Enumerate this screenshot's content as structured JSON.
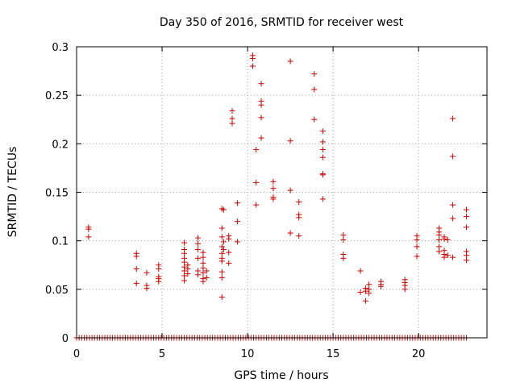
{
  "chart_data": {
    "type": "scatter",
    "title": "Day 350 of 2016, SRMTID for receiver west",
    "xlabel": "GPS time / hours",
    "ylabel": "SRMTID / TECUs",
    "xlim": [
      0,
      24
    ],
    "ylim": [
      0,
      0.3
    ],
    "x_ticks": [
      0,
      5,
      10,
      15,
      20
    ],
    "x_tick_labels": [
      "0",
      "5",
      "10",
      "15",
      "20"
    ],
    "y_ticks": [
      0,
      0.05,
      0.1,
      0.15,
      0.2,
      0.25,
      0.3
    ],
    "y_tick_labels": [
      "0",
      "0.05",
      "0.1",
      "0.15",
      "0.2",
      "0.25",
      "0.3"
    ],
    "grid": true,
    "marker": "+",
    "color": "#d00000",
    "zero_baseline": {
      "x_start": 0.0,
      "x_end": 22.8,
      "step": 0.15,
      "y": 0
    },
    "points": [
      [
        0.7,
        0.114
      ],
      [
        0.7,
        0.112
      ],
      [
        0.7,
        0.104
      ],
      [
        3.5,
        0.087
      ],
      [
        3.5,
        0.084
      ],
      [
        3.5,
        0.071
      ],
      [
        3.5,
        0.056
      ],
      [
        4.1,
        0.067
      ],
      [
        4.1,
        0.054
      ],
      [
        4.1,
        0.051
      ],
      [
        4.8,
        0.075
      ],
      [
        4.8,
        0.071
      ],
      [
        4.8,
        0.063
      ],
      [
        4.8,
        0.061
      ],
      [
        4.8,
        0.058
      ],
      [
        6.3,
        0.098
      ],
      [
        6.3,
        0.091
      ],
      [
        6.3,
        0.087
      ],
      [
        6.3,
        0.082
      ],
      [
        6.3,
        0.078
      ],
      [
        6.3,
        0.073
      ],
      [
        6.3,
        0.069
      ],
      [
        6.3,
        0.064
      ],
      [
        6.3,
        0.059
      ],
      [
        6.5,
        0.075
      ],
      [
        6.5,
        0.071
      ],
      [
        6.5,
        0.066
      ],
      [
        7.1,
        0.103
      ],
      [
        7.1,
        0.097
      ],
      [
        7.1,
        0.091
      ],
      [
        7.1,
        0.082
      ],
      [
        7.1,
        0.069
      ],
      [
        7.1,
        0.065
      ],
      [
        7.4,
        0.088
      ],
      [
        7.4,
        0.083
      ],
      [
        7.4,
        0.077
      ],
      [
        7.4,
        0.072
      ],
      [
        7.4,
        0.067
      ],
      [
        7.4,
        0.061
      ],
      [
        7.4,
        0.058
      ],
      [
        7.6,
        0.069
      ],
      [
        7.6,
        0.062
      ],
      [
        8.5,
        0.133
      ],
      [
        8.5,
        0.113
      ],
      [
        8.5,
        0.104
      ],
      [
        8.5,
        0.094
      ],
      [
        8.5,
        0.087
      ],
      [
        8.5,
        0.082
      ],
      [
        8.5,
        0.079
      ],
      [
        8.5,
        0.068
      ],
      [
        8.5,
        0.062
      ],
      [
        8.5,
        0.042
      ],
      [
        8.6,
        0.132
      ],
      [
        8.6,
        0.099
      ],
      [
        8.6,
        0.091
      ],
      [
        8.9,
        0.105
      ],
      [
        8.9,
        0.102
      ],
      [
        8.9,
        0.088
      ],
      [
        8.9,
        0.077
      ],
      [
        9.1,
        0.234
      ],
      [
        9.1,
        0.226
      ],
      [
        9.1,
        0.221
      ],
      [
        9.4,
        0.139
      ],
      [
        9.4,
        0.12
      ],
      [
        9.4,
        0.099
      ],
      [
        10.3,
        0.291
      ],
      [
        10.3,
        0.288
      ],
      [
        10.3,
        0.28
      ],
      [
        10.5,
        0.194
      ],
      [
        10.5,
        0.16
      ],
      [
        10.5,
        0.137
      ],
      [
        10.8,
        0.262
      ],
      [
        10.8,
        0.244
      ],
      [
        10.8,
        0.24
      ],
      [
        10.8,
        0.227
      ],
      [
        10.8,
        0.206
      ],
      [
        11.5,
        0.161
      ],
      [
        11.5,
        0.154
      ],
      [
        11.5,
        0.145
      ],
      [
        11.5,
        0.143
      ],
      [
        12.5,
        0.285
      ],
      [
        12.5,
        0.203
      ],
      [
        12.5,
        0.152
      ],
      [
        12.5,
        0.108
      ],
      [
        13.0,
        0.14
      ],
      [
        13.0,
        0.127
      ],
      [
        13.0,
        0.124
      ],
      [
        13.0,
        0.105
      ],
      [
        13.9,
        0.272
      ],
      [
        13.9,
        0.256
      ],
      [
        13.9,
        0.225
      ],
      [
        14.4,
        0.213
      ],
      [
        14.4,
        0.202
      ],
      [
        14.4,
        0.194
      ],
      [
        14.4,
        0.186
      ],
      [
        14.4,
        0.169
      ],
      [
        14.4,
        0.168
      ],
      [
        14.4,
        0.143
      ],
      [
        15.6,
        0.106
      ],
      [
        15.6,
        0.101
      ],
      [
        15.6,
        0.086
      ],
      [
        15.6,
        0.082
      ],
      [
        16.6,
        0.069
      ],
      [
        16.6,
        0.047
      ],
      [
        16.9,
        0.051
      ],
      [
        16.9,
        0.048
      ],
      [
        16.9,
        0.038
      ],
      [
        17.1,
        0.055
      ],
      [
        17.1,
        0.05
      ],
      [
        17.1,
        0.046
      ],
      [
        17.8,
        0.058
      ],
      [
        17.8,
        0.055
      ],
      [
        17.8,
        0.053
      ],
      [
        19.2,
        0.06
      ],
      [
        19.2,
        0.057
      ],
      [
        19.2,
        0.054
      ],
      [
        19.2,
        0.05
      ],
      [
        19.9,
        0.105
      ],
      [
        19.9,
        0.101
      ],
      [
        19.9,
        0.094
      ],
      [
        19.9,
        0.084
      ],
      [
        21.2,
        0.113
      ],
      [
        21.2,
        0.109
      ],
      [
        21.2,
        0.106
      ],
      [
        21.2,
        0.101
      ],
      [
        21.2,
        0.094
      ],
      [
        21.2,
        0.089
      ],
      [
        21.5,
        0.104
      ],
      [
        21.5,
        0.102
      ],
      [
        21.5,
        0.09
      ],
      [
        21.5,
        0.086
      ],
      [
        21.5,
        0.083
      ],
      [
        21.7,
        0.101
      ],
      [
        21.7,
        0.085
      ],
      [
        22.0,
        0.226
      ],
      [
        22.0,
        0.187
      ],
      [
        22.0,
        0.137
      ],
      [
        22.0,
        0.123
      ],
      [
        22.0,
        0.083
      ],
      [
        22.8,
        0.132
      ],
      [
        22.8,
        0.125
      ],
      [
        22.8,
        0.114
      ],
      [
        22.8,
        0.089
      ],
      [
        22.8,
        0.085
      ],
      [
        22.8,
        0.08
      ]
    ]
  }
}
